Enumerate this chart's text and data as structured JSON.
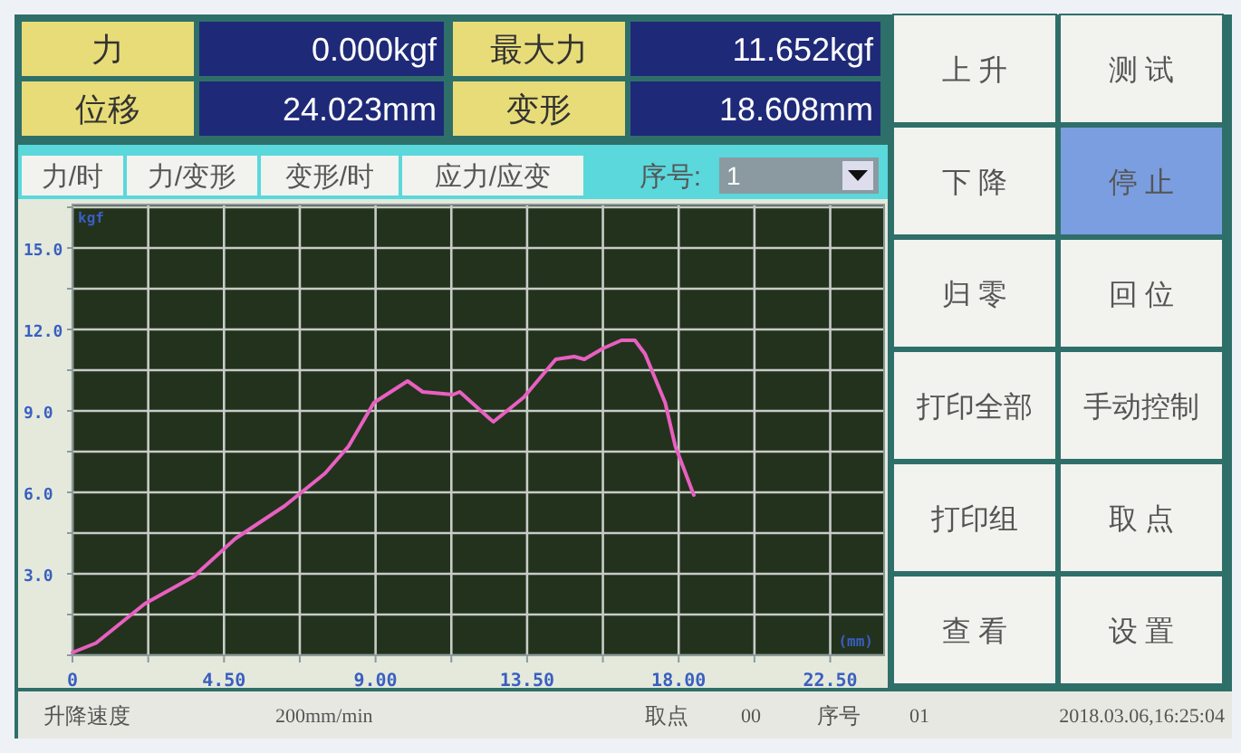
{
  "chart_data": {
    "type": "line",
    "xlabel": "(mm)",
    "ylabel": "kgf",
    "series": [
      {
        "color": "#e860c0",
        "x": [
          0,
          0.7,
          2.15,
          3.6,
          4.84,
          6.3,
          7.5,
          8.2,
          8.95,
          9.95,
          10.4,
          11.3,
          11.5,
          12.4,
          12.5,
          13.4,
          14.35,
          14.9,
          15.2,
          15.75,
          16.3,
          16.7,
          17.0,
          17.6,
          17.9,
          18.45
        ],
        "values": [
          0.1,
          0.45,
          1.9,
          2.9,
          4.3,
          5.5,
          6.7,
          7.7,
          9.3,
          10.1,
          9.7,
          9.6,
          9.7,
          8.7,
          8.6,
          9.5,
          10.9,
          11.0,
          10.9,
          11.3,
          11.6,
          11.6,
          11.1,
          9.3,
          7.7,
          5.9
        ]
      }
    ],
    "xlim": [
      0,
      24.1
    ],
    "ylim": [
      0,
      16.6
    ],
    "xticks": [
      0,
      {
        "value": 2.25,
        "label": null
      },
      {
        "value": 4.5,
        "label": "4.50"
      },
      {
        "value": 6.75,
        "label": null
      },
      {
        "value": 9,
        "label": "9.00"
      },
      {
        "value": 11.25,
        "label": null
      },
      {
        "value": 13.5,
        "label": "13.50"
      },
      {
        "value": 15.75,
        "label": null
      },
      {
        "value": 18,
        "label": "18.00"
      },
      {
        "value": 20.25,
        "label": null
      },
      {
        "value": 22.5,
        "label": "22.50"
      }
    ],
    "yticks": [
      {
        "value": 0,
        "label": null
      },
      {
        "value": 1.5,
        "label": null
      },
      {
        "value": 3,
        "label": "3.0"
      },
      {
        "value": 4.5,
        "label": null
      },
      {
        "value": 6,
        "label": "6.0"
      },
      {
        "value": 7.5,
        "label": null
      },
      {
        "value": 9,
        "label": "9.0"
      },
      {
        "value": 10.5,
        "label": null
      },
      {
        "value": 12,
        "label": "12.0"
      },
      {
        "value": 13.5,
        "label": null
      },
      {
        "value": 15,
        "label": "15.0"
      },
      {
        "value": 16.5,
        "label": null
      }
    ],
    "grid": true,
    "annotations": [
      "力",
      "0.000kgf",
      "最大力",
      "11.652kgf",
      "位移",
      "24.023mm",
      "变形",
      "18.608mm",
      "力/时",
      "力/变形",
      "变形/时",
      "应力/应变",
      "序号:",
      "1",
      "上 升",
      "测 试",
      "下 降",
      "停 止",
      "归 零",
      "回 位",
      "打印全部",
      "手动控制",
      "打印组",
      "取 点",
      "查 看",
      "设 置",
      "升降速度",
      "200mm/min",
      "取点",
      "00",
      "序号",
      "01",
      "2018.03.06,16:25:04"
    ]
  }
}
